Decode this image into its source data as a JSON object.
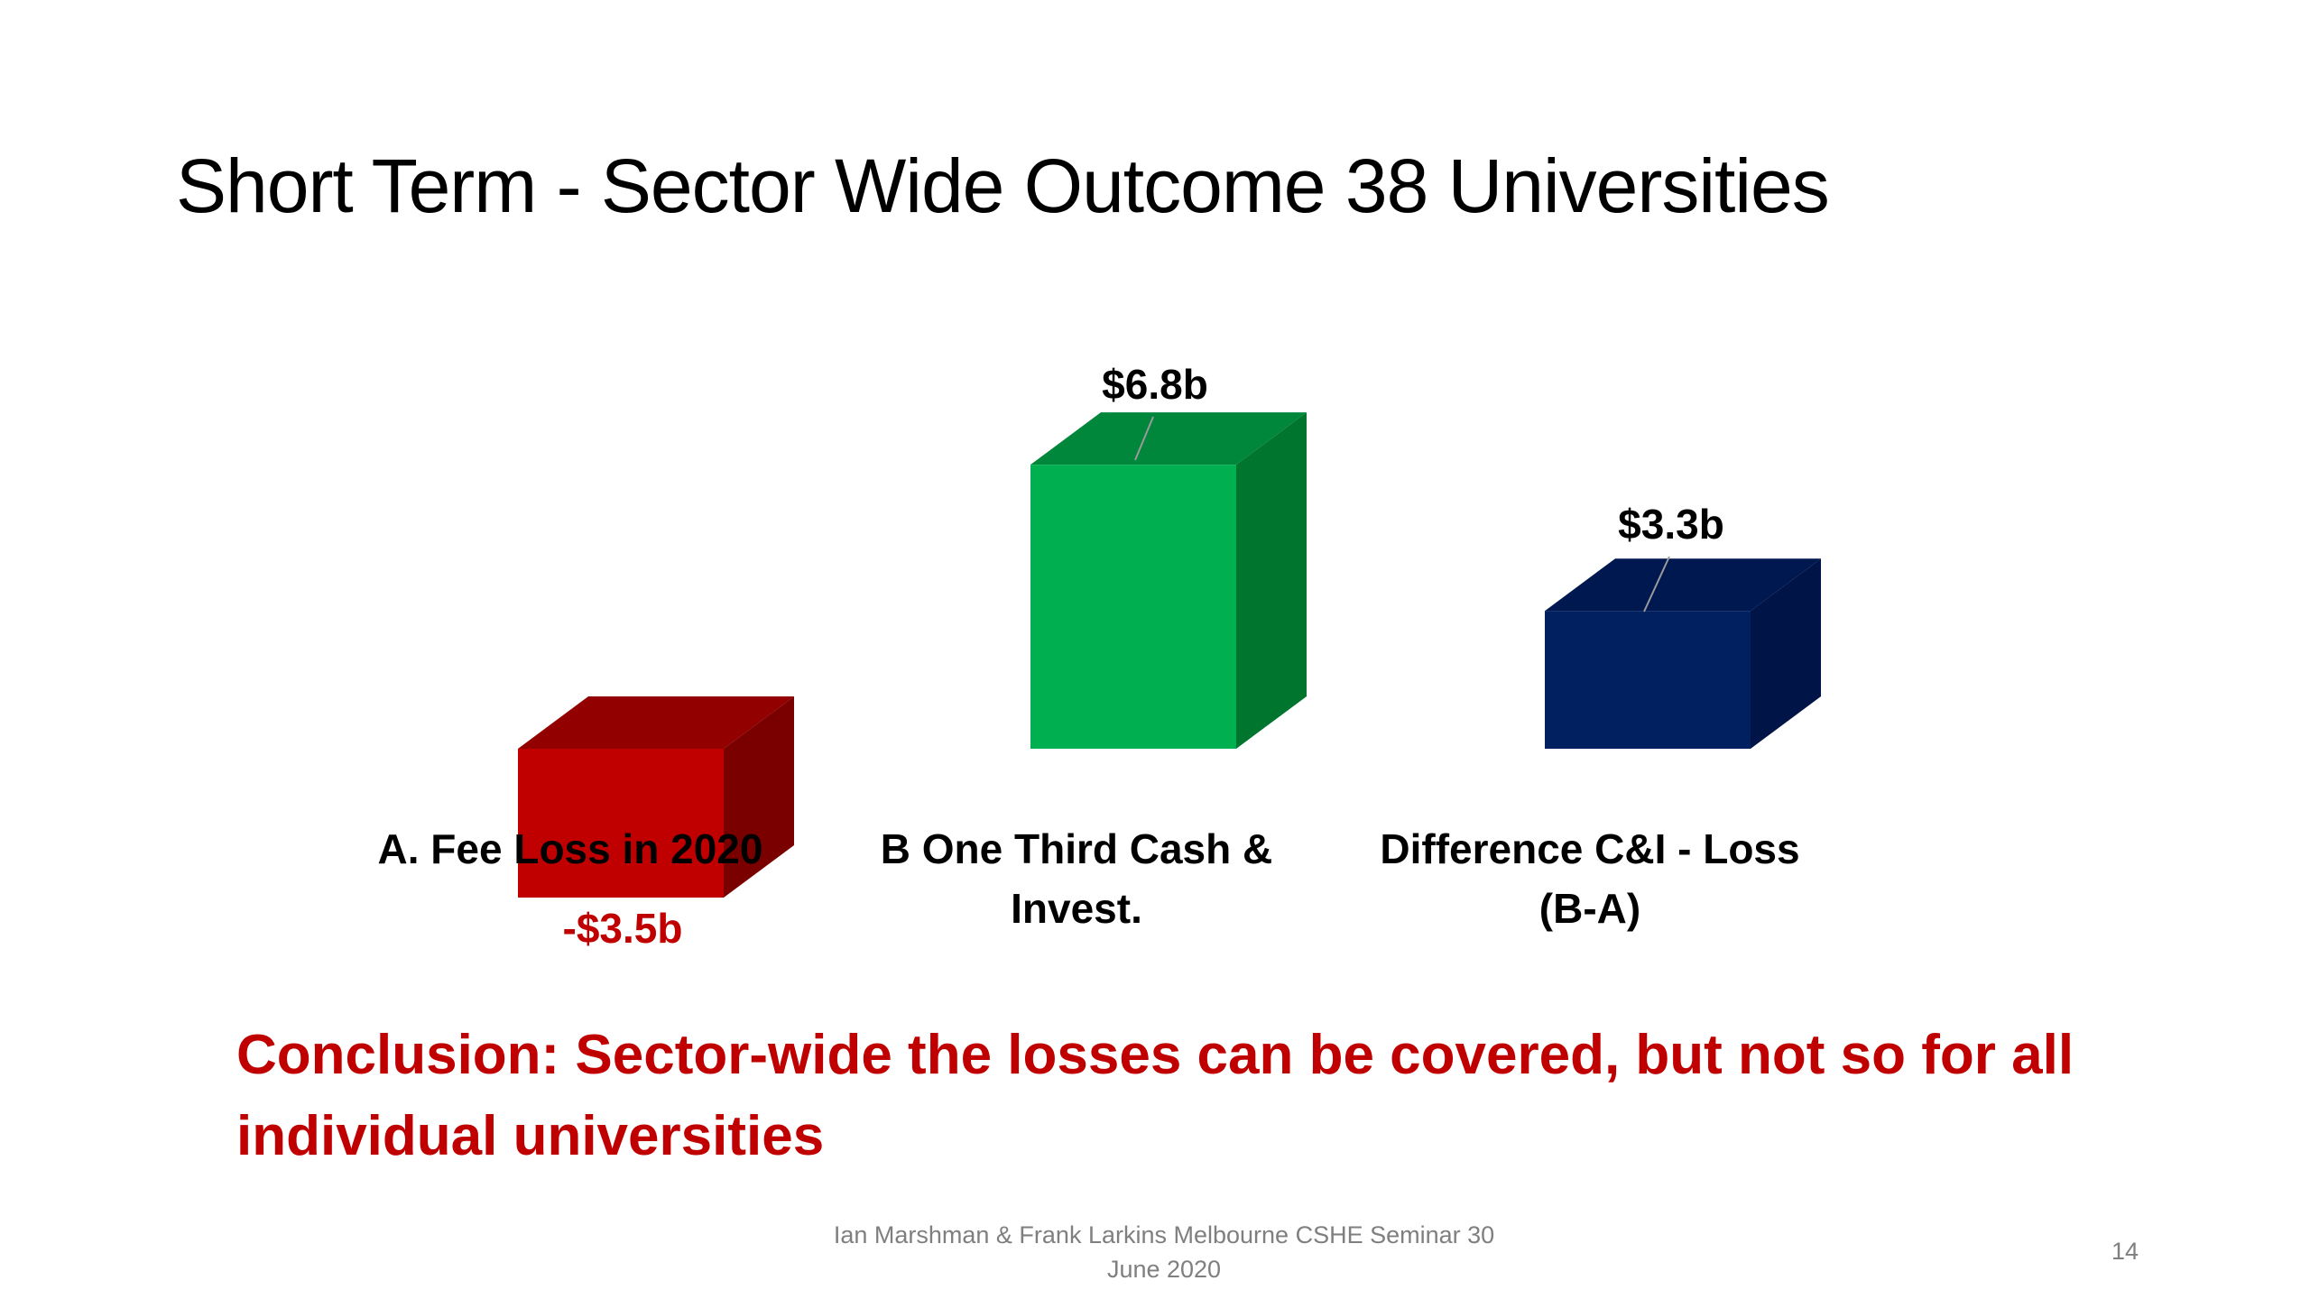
{
  "slide": {
    "title": "Short Term - Sector Wide Outcome 38 Universities",
    "conclusion": "Conclusion: Sector-wide the losses can be covered, but not so for all individual universities",
    "footer_line1": "Ian Marshman & Frank Larkins Melbourne CSHE Seminar 30",
    "footer_line2": "June 2020",
    "page_number": "14"
  },
  "chart_data": {
    "type": "bar",
    "style": "3d",
    "title": "",
    "xlabel": "",
    "ylabel": "",
    "grid": false,
    "ylim": [
      -3.5,
      6.8
    ],
    "unit": "$ billion",
    "categories": [
      [
        "A. Fee Loss in 2020"
      ],
      [
        "B One Third Cash &",
        "Invest."
      ],
      [
        "Difference C&I - Loss",
        "(B-A)"
      ]
    ],
    "values": [
      -3.5,
      6.8,
      3.3
    ],
    "data_labels": [
      "-$3.5b",
      "$6.8b",
      "$3.3b"
    ],
    "colors": [
      "#C00000",
      "#00B050",
      "#002060"
    ],
    "side_colors": [
      "#7A0000",
      "#00752E",
      "#001448"
    ],
    "top_colors": [
      "#930000",
      "#00873C",
      "#001850"
    ],
    "label_colors": [
      "#C00000",
      "#000000",
      "#000000"
    ]
  }
}
